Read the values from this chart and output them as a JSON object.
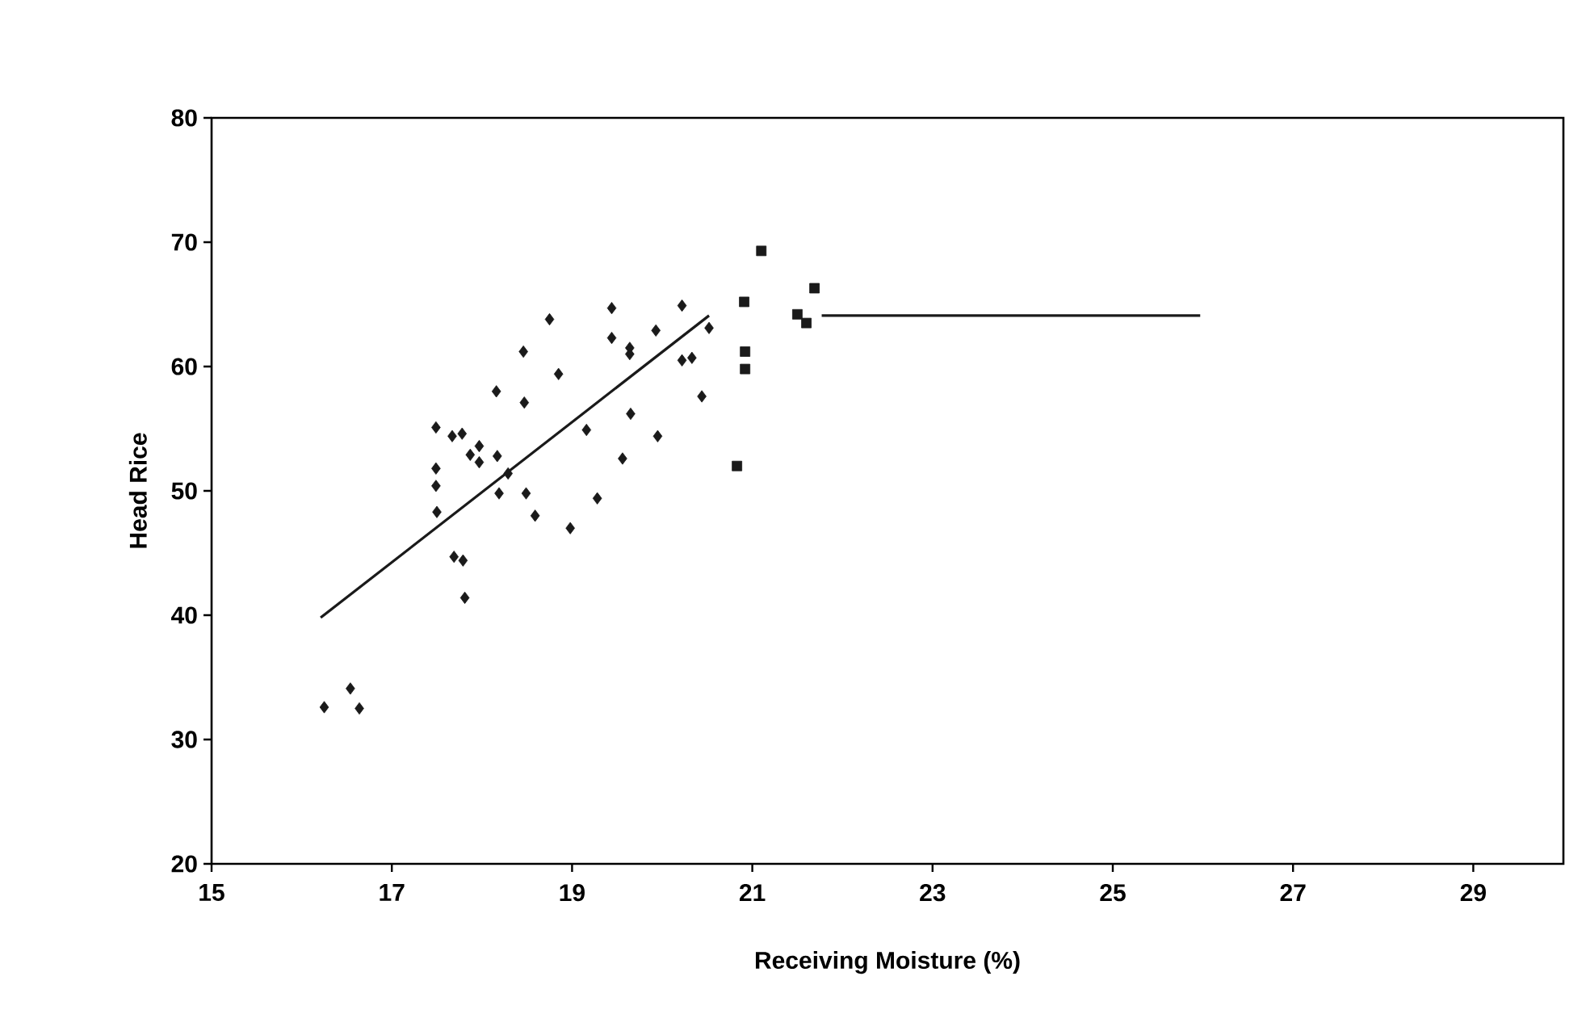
{
  "chart_data": {
    "type": "scatter",
    "xlabel": "Receiving Moisture (%)",
    "ylabel": "Head Rice",
    "xlim": [
      15,
      30
    ],
    "ylim": [
      20,
      80
    ],
    "xticks": [
      15,
      17,
      19,
      21,
      23,
      25,
      27,
      29
    ],
    "yticks": [
      20,
      30,
      40,
      50,
      60,
      70,
      80
    ],
    "grid": false,
    "series": [
      {
        "color": "#1a1a1a",
        "marker": "diamond",
        "x": [
          17.49,
          17.67,
          17.78,
          17.49,
          17.49,
          17.5,
          17.87,
          17.97,
          17.97,
          18.17,
          18.16,
          18.46,
          18.47,
          18.29,
          18.19,
          18.49,
          18.59,
          17.69,
          17.79,
          17.81,
          18.75,
          18.85,
          18.98,
          19.16,
          19.28,
          19.44,
          19.44,
          19.64,
          19.64,
          19.65,
          19.56,
          19.93,
          19.95,
          20.22,
          20.22,
          20.33,
          20.52,
          20.44,
          16.25,
          16.54,
          16.64
        ],
        "values": [
          55.1,
          54.4,
          54.6,
          51.8,
          50.4,
          48.3,
          52.9,
          53.6,
          52.3,
          52.8,
          58.0,
          61.2,
          57.1,
          51.4,
          49.8,
          49.8,
          48.0,
          44.7,
          44.4,
          41.4,
          63.8,
          59.4,
          47.0,
          54.9,
          49.4,
          64.7,
          62.3,
          61.5,
          61.0,
          56.2,
          52.6,
          62.9,
          54.4,
          64.9,
          60.5,
          60.7,
          63.1,
          57.6,
          32.6,
          34.1,
          32.5
        ]
      },
      {
        "color": "#1a1a1a",
        "marker": "square",
        "x": [
          20.91,
          20.92,
          20.92,
          20.83,
          21.1,
          21.69,
          21.5,
          21.6
        ],
        "values": [
          65.2,
          61.2,
          59.8,
          52.0,
          69.3,
          66.3,
          64.2,
          63.5
        ]
      },
      {
        "type": "line",
        "color": "#1a1a1a",
        "marker": "none",
        "x": [
          16.21,
          20.52
        ],
        "values": [
          39.8,
          64.1
        ]
      },
      {
        "type": "line",
        "color": "#1a1a1a",
        "marker": "none",
        "x": [
          21.77,
          25.97
        ],
        "values": [
          64.1,
          64.1
        ]
      }
    ]
  }
}
